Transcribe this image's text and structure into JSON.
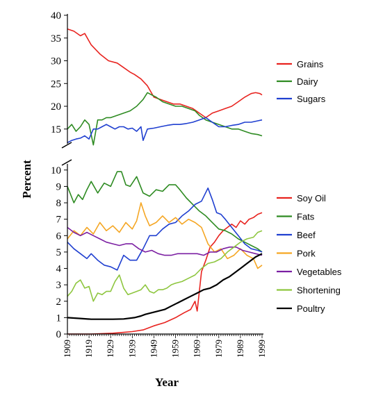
{
  "chart_data": {
    "type": "line",
    "xlabel": "Year",
    "ylabel": "Percent",
    "xlim": [
      1909,
      1999
    ],
    "x_ticks": [
      "1909",
      "1919",
      "1929",
      "1939",
      "1949",
      "1959",
      "1969",
      "1979",
      "1989",
      "1999"
    ],
    "top_panel": {
      "ylim": [
        11,
        40
      ],
      "y_ticks": [
        "15",
        "20",
        "25",
        "30",
        "35",
        "40"
      ],
      "legend_position": "right",
      "series": [
        {
          "name": "Grains",
          "color": "#e8231f",
          "x": [
            1909,
            1912,
            1915,
            1917,
            1920,
            1924,
            1928,
            1932,
            1935,
            1938,
            1940,
            1943,
            1946,
            1949,
            1952,
            1955,
            1958,
            1961,
            1964,
            1967,
            1970,
            1973,
            1976,
            1979,
            1982,
            1985,
            1988,
            1991,
            1994,
            1996,
            1998,
            1999
          ],
          "y": [
            37,
            36.5,
            35.5,
            36,
            33.5,
            31.5,
            30,
            29.5,
            28.5,
            27.5,
            27,
            26,
            24.5,
            22,
            21.5,
            21,
            20.5,
            20.5,
            20,
            19.5,
            18.5,
            17.5,
            18.5,
            19,
            19.5,
            20,
            21,
            22,
            22.8,
            23,
            22.8,
            22.5
          ]
        },
        {
          "name": "Dairy",
          "color": "#2e8b22",
          "x": [
            1909,
            1911,
            1913,
            1915,
            1917,
            1919,
            1921,
            1923,
            1925,
            1927,
            1929,
            1932,
            1935,
            1938,
            1941,
            1944,
            1946,
            1948,
            1950,
            1953,
            1956,
            1959,
            1962,
            1965,
            1968,
            1970,
            1973,
            1976,
            1979,
            1982,
            1985,
            1988,
            1991,
            1994,
            1997,
            1999
          ],
          "y": [
            15,
            16,
            14.5,
            15.5,
            17,
            16,
            11.5,
            17,
            17,
            17.5,
            17.5,
            18,
            18.5,
            19,
            20,
            21.5,
            23,
            22.5,
            22,
            21,
            20.5,
            20,
            20,
            19.5,
            19,
            18,
            17,
            16.5,
            16,
            15.5,
            15,
            15,
            14.5,
            14,
            13.8,
            13.5
          ]
        },
        {
          "name": "Sugars",
          "color": "#1f3fd0",
          "x": [
            1909,
            1911,
            1913,
            1915,
            1917,
            1919,
            1921,
            1923,
            1925,
            1927,
            1929,
            1931,
            1933,
            1935,
            1937,
            1939,
            1941,
            1943,
            1944,
            1946,
            1949,
            1952,
            1955,
            1958,
            1961,
            1964,
            1967,
            1970,
            1973,
            1976,
            1979,
            1982,
            1985,
            1988,
            1991,
            1994,
            1997,
            1999
          ],
          "y": [
            12,
            12.5,
            12.8,
            13,
            13.5,
            12.8,
            15,
            15,
            15.5,
            16,
            15.5,
            15,
            15.5,
            15.5,
            15,
            15.2,
            14.5,
            15.5,
            12.5,
            15,
            15.2,
            15.5,
            15.8,
            16,
            16,
            16.2,
            16.5,
            17,
            17.5,
            16.5,
            15.5,
            15.5,
            15.8,
            16,
            16.5,
            16.5,
            16.8,
            17
          ]
        }
      ]
    },
    "bottom_panel": {
      "ylim": [
        0,
        10.5
      ],
      "y_ticks": [
        "0",
        "1",
        "2",
        "3",
        "4",
        "5",
        "6",
        "7",
        "8",
        "9",
        "10"
      ],
      "legend_position": "right",
      "series": [
        {
          "name": "Soy Oil",
          "color": "#e8231f",
          "x": [
            1909,
            1920,
            1930,
            1935,
            1939,
            1944,
            1949,
            1954,
            1959,
            1963,
            1966,
            1968,
            1969,
            1971,
            1973,
            1975,
            1977,
            1979,
            1981,
            1983,
            1985,
            1987,
            1989,
            1991,
            1993,
            1995,
            1997,
            1999
          ],
          "y": [
            0,
            0,
            0.05,
            0.1,
            0.15,
            0.25,
            0.5,
            0.7,
            1.0,
            1.3,
            1.5,
            2.0,
            1.4,
            3.8,
            4.5,
            5.3,
            5.6,
            6.0,
            6.3,
            6.5,
            6.7,
            6.5,
            6.9,
            6.7,
            7.0,
            7.1,
            7.3,
            7.4
          ]
        },
        {
          "name": "Fats",
          "color": "#2e8b22",
          "x": [
            1909,
            1912,
            1914,
            1916,
            1918,
            1920,
            1923,
            1926,
            1929,
            1932,
            1934,
            1936,
            1938,
            1941,
            1944,
            1947,
            1950,
            1953,
            1956,
            1959,
            1961,
            1964,
            1967,
            1970,
            1973,
            1976,
            1979,
            1982,
            1985,
            1988,
            1991,
            1994,
            1997,
            1999
          ],
          "y": [
            9.0,
            8.0,
            8.5,
            8.2,
            8.8,
            9.3,
            8.6,
            9.2,
            9.0,
            9.9,
            9.9,
            9.1,
            9.0,
            9.6,
            8.6,
            8.4,
            8.8,
            8.7,
            9.1,
            9.1,
            8.8,
            8.3,
            7.9,
            7.5,
            7.2,
            6.8,
            6.4,
            6.3,
            6.1,
            5.8,
            5.6,
            5.4,
            5.2,
            5.0
          ]
        },
        {
          "name": "Beef",
          "color": "#1f3fd0",
          "x": [
            1909,
            1912,
            1915,
            1918,
            1920,
            1923,
            1926,
            1929,
            1932,
            1935,
            1938,
            1941,
            1944,
            1947,
            1950,
            1953,
            1956,
            1959,
            1962,
            1965,
            1968,
            1971,
            1974,
            1976,
            1978,
            1980,
            1982,
            1985,
            1988,
            1991,
            1994,
            1997,
            1999
          ],
          "y": [
            5.6,
            5.2,
            4.9,
            4.6,
            4.9,
            4.5,
            4.2,
            4.1,
            3.9,
            4.8,
            4.5,
            4.5,
            5.2,
            6.0,
            6.0,
            6.4,
            6.7,
            6.8,
            7.2,
            7.5,
            7.9,
            8.1,
            8.9,
            8.2,
            7.4,
            7.3,
            7.0,
            6.5,
            6.0,
            5.5,
            5.2,
            5.1,
            5.0
          ]
        },
        {
          "name": "Pork",
          "color": "#f5a623",
          "x": [
            1909,
            1912,
            1915,
            1918,
            1921,
            1924,
            1927,
            1930,
            1933,
            1936,
            1939,
            1941,
            1943,
            1945,
            1947,
            1950,
            1953,
            1956,
            1959,
            1962,
            1965,
            1968,
            1971,
            1974,
            1977,
            1980,
            1983,
            1986,
            1989,
            1992,
            1995,
            1997,
            1999
          ],
          "y": [
            5.8,
            6.3,
            6.0,
            6.5,
            6.1,
            6.8,
            6.3,
            6.6,
            6.2,
            6.8,
            6.4,
            6.9,
            8.0,
            7.2,
            6.6,
            6.8,
            7.2,
            6.8,
            7.1,
            6.7,
            7.0,
            6.8,
            6.5,
            5.5,
            5.0,
            5.2,
            4.6,
            4.8,
            5.2,
            4.8,
            4.6,
            4.0,
            4.2
          ]
        },
        {
          "name": "Vegetables",
          "color": "#7b1fa2",
          "x": [
            1909,
            1912,
            1915,
            1918,
            1921,
            1924,
            1927,
            1930,
            1933,
            1936,
            1939,
            1942,
            1945,
            1948,
            1951,
            1954,
            1957,
            1960,
            1963,
            1966,
            1969,
            1972,
            1975,
            1978,
            1981,
            1984,
            1987,
            1990,
            1993,
            1996,
            1999
          ],
          "y": [
            6.5,
            6.2,
            6.0,
            6.2,
            6.0,
            5.8,
            5.6,
            5.5,
            5.4,
            5.5,
            5.5,
            5.2,
            5.0,
            5.1,
            4.9,
            4.8,
            4.8,
            4.9,
            4.9,
            4.9,
            4.9,
            4.8,
            5.0,
            5.0,
            5.2,
            5.3,
            5.3,
            5.1,
            5.0,
            4.9,
            4.8
          ]
        },
        {
          "name": "Shortening",
          "color": "#8ec63f",
          "x": [
            1909,
            1911,
            1913,
            1915,
            1917,
            1919,
            1921,
            1923,
            1925,
            1927,
            1929,
            1931,
            1933,
            1935,
            1937,
            1939,
            1941,
            1943,
            1945,
            1947,
            1949,
            1951,
            1953,
            1955,
            1957,
            1959,
            1962,
            1965,
            1968,
            1971,
            1974,
            1977,
            1980,
            1983,
            1986,
            1989,
            1992,
            1995,
            1997,
            1999
          ],
          "y": [
            2.3,
            2.6,
            3.1,
            3.3,
            2.8,
            2.9,
            2.0,
            2.5,
            2.4,
            2.6,
            2.6,
            3.2,
            3.6,
            2.8,
            2.4,
            2.5,
            2.6,
            2.7,
            3.0,
            2.6,
            2.5,
            2.7,
            2.7,
            2.8,
            3.0,
            3.1,
            3.2,
            3.4,
            3.6,
            4.0,
            4.3,
            4.4,
            4.6,
            5.0,
            5.3,
            5.6,
            5.8,
            5.9,
            6.2,
            6.3
          ]
        },
        {
          "name": "Poultry",
          "color": "#000000",
          "x": [
            1909,
            1915,
            1920,
            1925,
            1930,
            1935,
            1940,
            1943,
            1945,
            1948,
            1951,
            1954,
            1957,
            1960,
            1963,
            1966,
            1969,
            1972,
            1975,
            1978,
            1981,
            1984,
            1987,
            1990,
            1993,
            1996,
            1999
          ],
          "y": [
            1.0,
            0.95,
            0.9,
            0.9,
            0.9,
            0.92,
            1.0,
            1.1,
            1.2,
            1.3,
            1.4,
            1.5,
            1.7,
            1.9,
            2.1,
            2.3,
            2.5,
            2.7,
            2.8,
            3.0,
            3.3,
            3.5,
            3.8,
            4.1,
            4.4,
            4.7,
            4.9
          ]
        }
      ]
    }
  }
}
